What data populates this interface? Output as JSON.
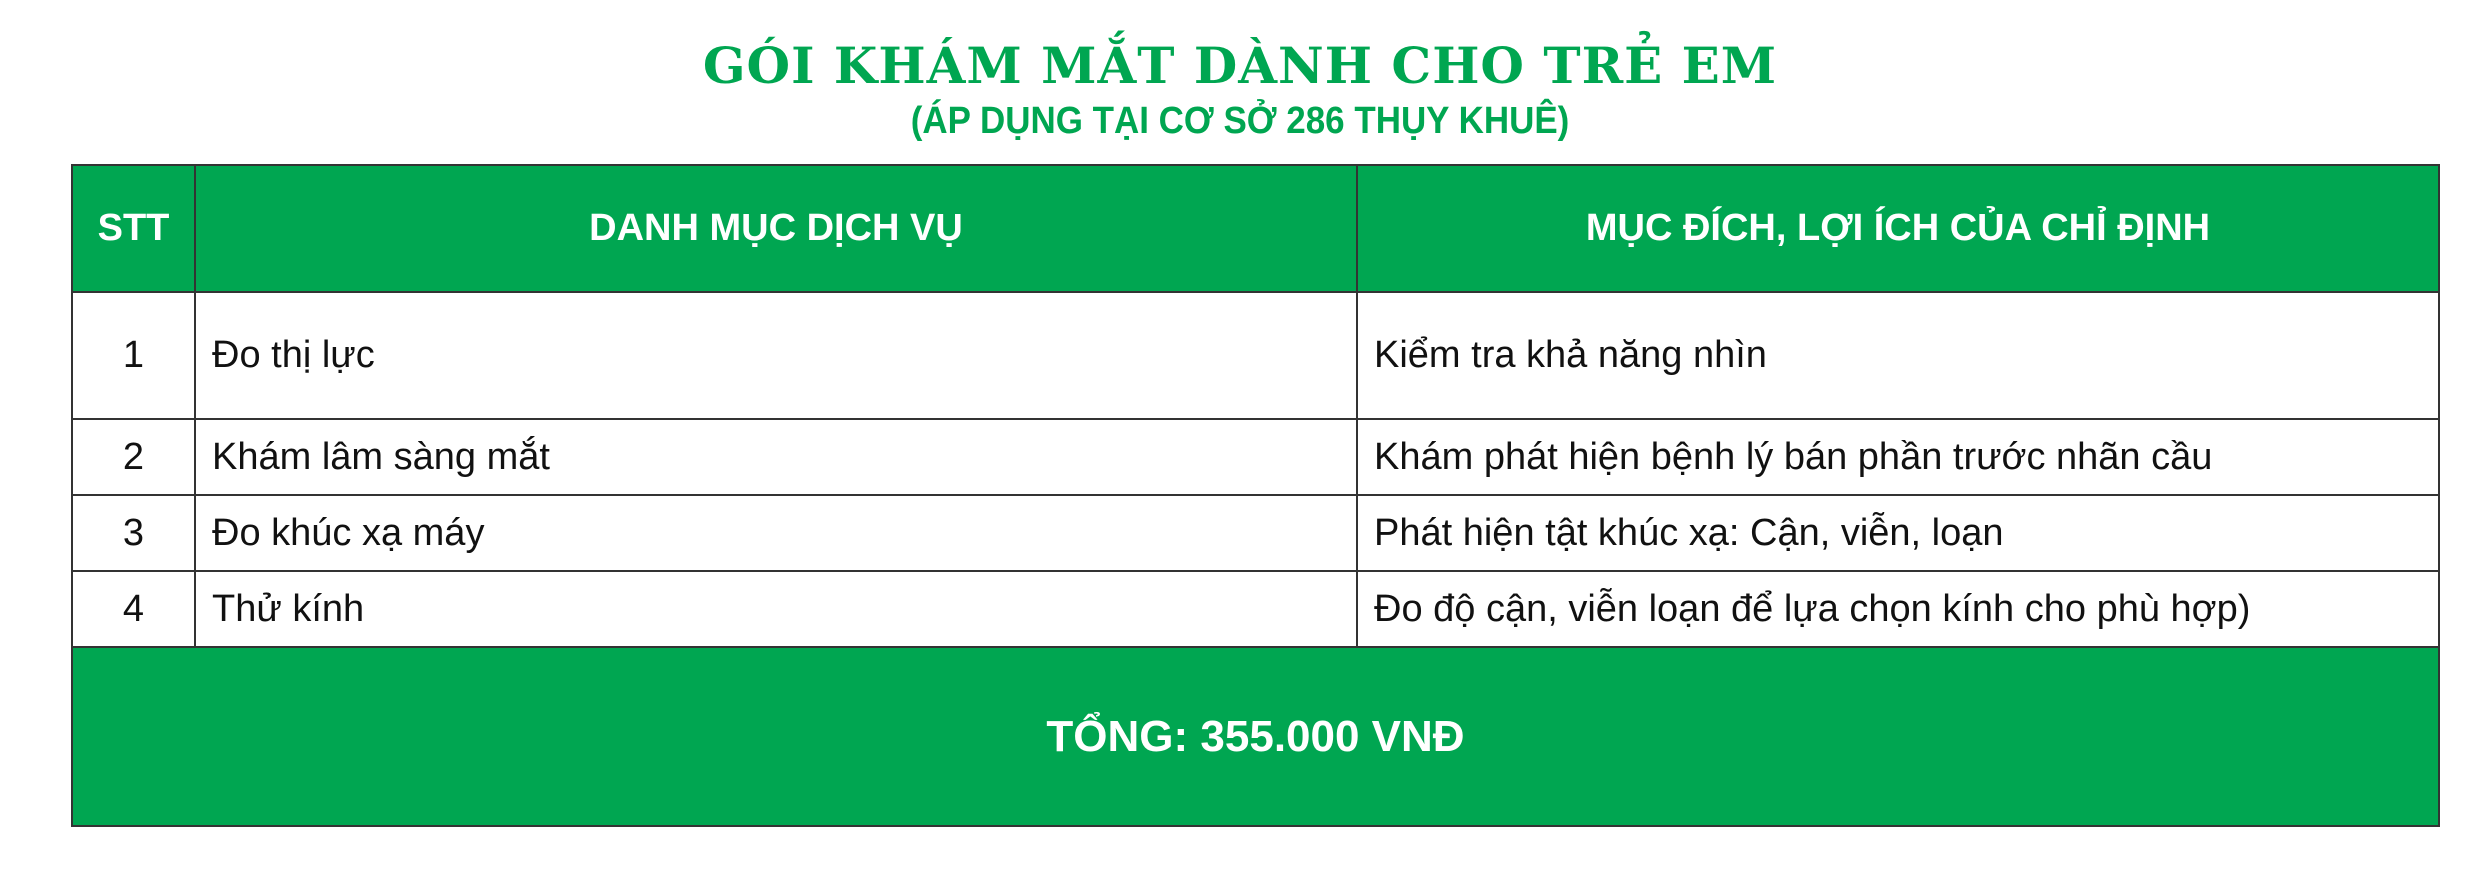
{
  "title": "GÓI KHÁM MẮT DÀNH CHO TRẺ EM",
  "subtitle": "(ÁP DỤNG TẠI CƠ SỞ 286 THỤY KHUÊ)",
  "colors": {
    "accent": "#00a651",
    "border": "#333333"
  },
  "table": {
    "headers": [
      "STT",
      "DANH MỤC DỊCH VỤ",
      "MỤC ĐÍCH, LỢI ÍCH CỦA CHỈ ĐỊNH"
    ],
    "rows": [
      {
        "stt": "1",
        "service": "Đo thị lực",
        "purpose": "Kiểm tra khả năng nhìn"
      },
      {
        "stt": "2",
        "service": "Khám lâm sàng mắt",
        "purpose": "Khám phát hiện bệnh lý bán phần trước nhãn cầu"
      },
      {
        "stt": "3",
        "service": "Đo khúc xạ máy",
        "purpose": "Phát hiện tật khúc xạ: Cận, viễn, loạn"
      },
      {
        "stt": "4",
        "service": "Thử kính",
        "purpose": "Đo độ cận, viễn loạn để lựa chọn kính cho phù hợp)"
      }
    ],
    "total": "TỔNG: 355.000 VNĐ"
  }
}
